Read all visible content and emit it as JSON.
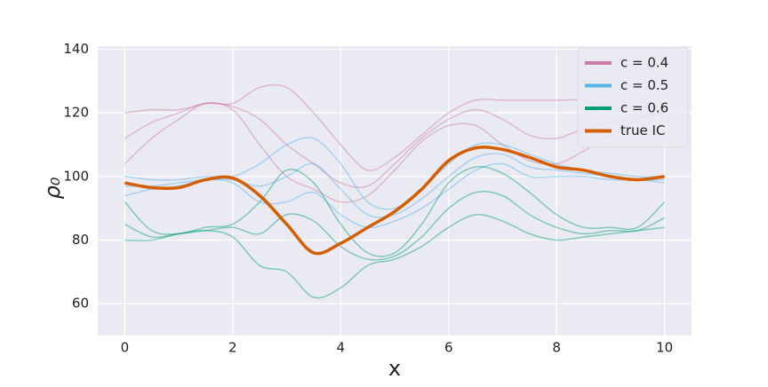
{
  "chart_data": {
    "type": "line",
    "x": [
      0,
      0.5,
      1,
      1.5,
      2,
      2.5,
      3,
      3.5,
      4,
      4.5,
      5,
      5.5,
      6,
      6.5,
      7,
      7.5,
      8,
      8.5,
      9,
      9.5,
      10
    ],
    "xlabel": "x",
    "ylabel": "ρ₀",
    "xlim": [
      -0.5,
      10.5
    ],
    "xticks": [
      0,
      2,
      4,
      6,
      8,
      10
    ],
    "ylim": [
      50,
      141
    ],
    "yticks": [
      60,
      80,
      100,
      120,
      140
    ],
    "grid": true,
    "legend": "upper right",
    "series": [
      {
        "name": "c = 0.4",
        "color": "#cc79a7",
        "samples": [
          [
            112,
            117,
            120,
            123,
            122,
            118,
            110,
            104,
            98,
            97,
            104,
            112,
            118,
            121,
            118,
            113,
            112,
            115,
            117,
            119,
            120
          ],
          [
            120,
            121,
            121,
            123,
            123,
            128,
            128,
            120,
            110,
            102,
            106,
            113,
            120,
            124,
            124,
            124,
            124,
            124,
            122,
            122,
            122
          ],
          [
            104,
            112,
            118,
            123,
            121,
            110,
            100,
            96,
            92,
            94,
            102,
            111,
            116,
            116,
            110,
            105,
            104,
            108,
            113,
            118,
            120
          ]
        ]
      },
      {
        "name": "c = 0.5",
        "color": "#56b4e9",
        "samples": [
          [
            97,
            97,
            98,
            99,
            99,
            97,
            100,
            104,
            96,
            88,
            88,
            93,
            100,
            106,
            107,
            103,
            102,
            101,
            100,
            99,
            99
          ],
          [
            100,
            99,
            99,
            100,
            100,
            104,
            110,
            112,
            104,
            92,
            90,
            96,
            104,
            110,
            110,
            107,
            104,
            102,
            101,
            100,
            100
          ],
          [
            94,
            96,
            97,
            99,
            98,
            92,
            92,
            95,
            88,
            84,
            86,
            90,
            96,
            102,
            104,
            100,
            100,
            100,
            99,
            99,
            98
          ]
        ]
      },
      {
        "name": "c = 0.6",
        "color": "#009e73",
        "samples": [
          [
            85,
            81,
            82,
            83,
            84,
            82,
            88,
            86,
            78,
            74,
            75,
            81,
            90,
            95,
            94,
            88,
            84,
            82,
            83,
            83,
            87
          ],
          [
            92,
            83,
            82,
            84,
            85,
            92,
            102,
            98,
            85,
            76,
            76,
            85,
            98,
            103,
            101,
            95,
            88,
            84,
            84,
            84,
            92
          ],
          [
            80,
            80,
            82,
            83,
            81,
            72,
            70,
            62,
            65,
            72,
            74,
            78,
            84,
            88,
            86,
            82,
            80,
            81,
            82,
            83,
            84
          ]
        ]
      },
      {
        "name": "true IC",
        "color": "#d55e00",
        "values": [
          98,
          96.5,
          96.5,
          99,
          99.5,
          94,
          85,
          76,
          79,
          84,
          89,
          96,
          105,
          109,
          108.5,
          106,
          103,
          102,
          100,
          99,
          100
        ]
      }
    ]
  }
}
